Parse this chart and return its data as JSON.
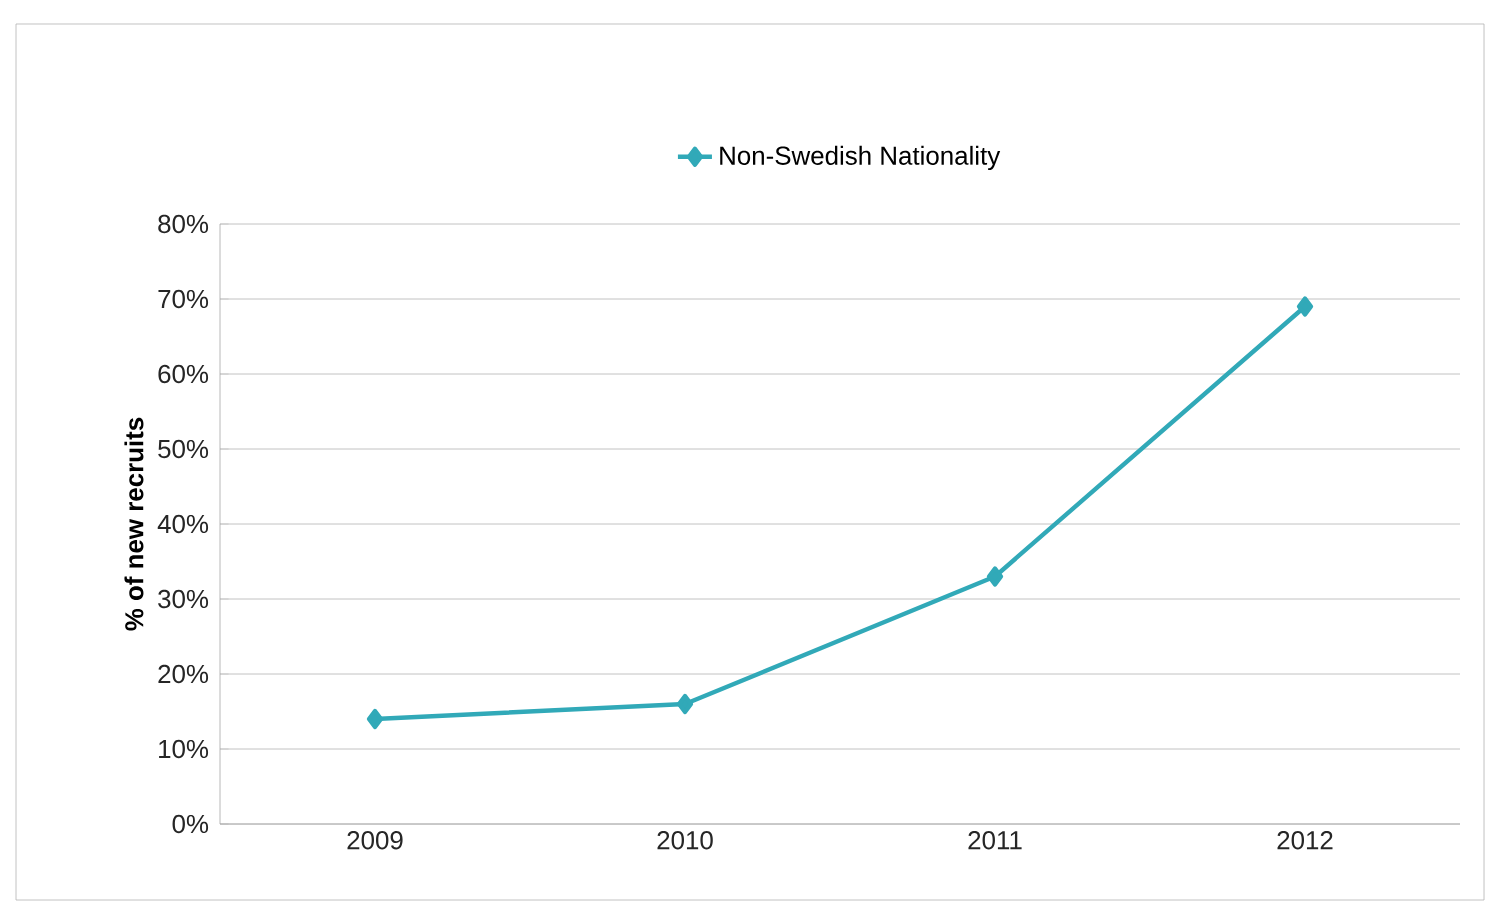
{
  "chart_data": {
    "type": "line",
    "ylabel": "% of new recruits",
    "categories": [
      "2009",
      "2010",
      "2011",
      "2012"
    ],
    "series": [
      {
        "name": "Non-Swedish Nationality",
        "color": "#31a9b8",
        "values": [
          14,
          16,
          33,
          69
        ]
      }
    ],
    "ylim": [
      0,
      80
    ],
    "yticks": [
      {
        "value": 0,
        "label": "0%"
      },
      {
        "value": 10,
        "label": "10%"
      },
      {
        "value": 20,
        "label": "20%"
      },
      {
        "value": 30,
        "label": "30%"
      },
      {
        "value": 40,
        "label": "40%"
      },
      {
        "value": 50,
        "label": "50%"
      },
      {
        "value": 60,
        "label": "60%"
      },
      {
        "value": 70,
        "label": "70%"
      },
      {
        "value": 80,
        "label": "80%"
      }
    ],
    "grid": "y",
    "legend": "top",
    "marker": "diamond",
    "line_style": "solid"
  }
}
